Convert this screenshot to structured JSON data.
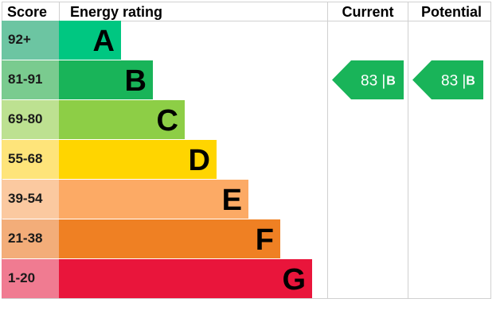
{
  "headers": {
    "score": "Score",
    "energy_rating": "Energy rating",
    "current": "Current",
    "potential": "Potential"
  },
  "chart_data": {
    "type": "bar",
    "bands": [
      {
        "score": "92+",
        "letter": "A",
        "color": "#00c781",
        "score_bg": "#6cc5a2"
      },
      {
        "score": "81-91",
        "letter": "B",
        "color": "#19b459",
        "score_bg": "#7acb8f"
      },
      {
        "score": "69-80",
        "letter": "C",
        "color": "#8dce46",
        "score_bg": "#bde191"
      },
      {
        "score": "55-68",
        "letter": "D",
        "color": "#ffd500",
        "score_bg": "#fee47a"
      },
      {
        "score": "39-54",
        "letter": "E",
        "color": "#fcaa65",
        "score_bg": "#fbc9a0"
      },
      {
        "score": "21-38",
        "letter": "F",
        "color": "#ef8023",
        "score_bg": "#f3ad79"
      },
      {
        "score": "1-20",
        "letter": "G",
        "color": "#e9153b",
        "score_bg": "#f07b91"
      }
    ],
    "current": {
      "value": 83,
      "band": "B",
      "text": "83 |",
      "color": "#19b459"
    },
    "potential": {
      "value": 83,
      "band": "B",
      "text": "83 |",
      "color": "#19b459"
    }
  }
}
